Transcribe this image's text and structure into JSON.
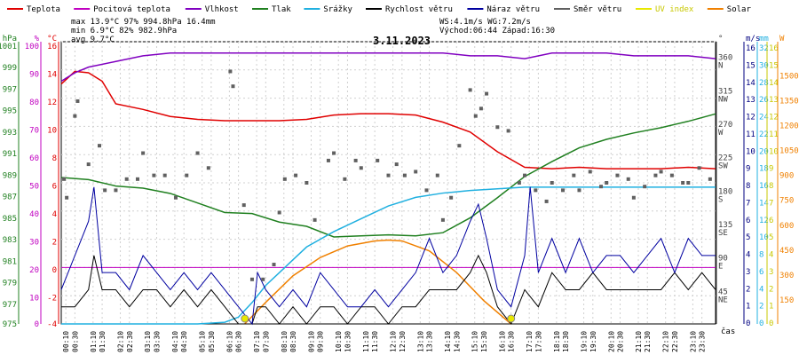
{
  "chart_data": {
    "type": "line",
    "title": "3.11.2023",
    "legend": [
      {
        "label": "Teplota",
        "color": "#e00000"
      },
      {
        "label": "Pocitová teplota",
        "color": "#c000c0"
      },
      {
        "label": "Vlhkost",
        "color": "#8000c0"
      },
      {
        "label": "Tlak",
        "color": "#208020"
      },
      {
        "label": "Srážky",
        "color": "#20b0e0"
      },
      {
        "label": "Rychlost větru",
        "color": "#000000"
      },
      {
        "label": "Náraz větru",
        "color": "#0000a0"
      },
      {
        "label": "Směr větru",
        "color": "#606060"
      },
      {
        "label": "UV index",
        "color": "#e8e800"
      },
      {
        "label": "Solar",
        "color": "#f08000"
      }
    ],
    "stats": {
      "max": "max  13.9°C  97%  994.8hPa   16.4mm",
      "min": "min   6.9°C  82%  982.9hPa",
      "avg": "avg   9.7°C",
      "wind": "WS:4.1m/s       WG:7.2m/s",
      "sun": "Východ:06:44   Západ:16:30"
    },
    "axis_headers": {
      "pressure": "hPa",
      "humidity": "%",
      "temperature": "°C",
      "direction": "°",
      "wind": "m/s",
      "rain": "mm",
      "solar": "W"
    },
    "axes": {
      "pressure": [
        "1001",
        "999",
        "997",
        "995",
        "993",
        "991",
        "989",
        "987",
        "985",
        "983",
        "981",
        "979",
        "977",
        "975"
      ],
      "humidity": [
        "100",
        "90",
        "80",
        "70",
        "60",
        "50",
        "40",
        "30",
        "20",
        "10",
        "0"
      ],
      "temperature": [
        "16",
        "14",
        "12",
        "10",
        "8",
        "6",
        "4",
        "2",
        "0",
        "-2",
        "-4"
      ],
      "direction": [
        "360\nN",
        "315\nNW",
        "270\nW",
        "225\nSW",
        "180\nS",
        "135\nSE",
        "90\nE",
        "45\nNE"
      ],
      "wind": [
        "16",
        "15",
        "14",
        "13",
        "12",
        "11",
        "10",
        "9",
        "8",
        "7",
        "6",
        "5",
        "4",
        "3",
        "2",
        "1",
        "0"
      ],
      "rain": [
        "32",
        "30",
        "28",
        "26",
        "24",
        "22",
        "20",
        "18",
        "16",
        "14",
        "12",
        "10",
        "8",
        "6",
        "4",
        "2",
        "0"
      ],
      "uv": [
        "16",
        "15",
        "14",
        "13",
        "12",
        "11",
        "10",
        "9",
        "8",
        "7",
        "6",
        "5",
        "4",
        "3",
        "2",
        "1",
        "0"
      ],
      "solar": [
        "1500",
        "1350",
        "1200",
        "1050",
        "900",
        "750",
        "600",
        "450",
        "300",
        "150"
      ]
    },
    "x_ticks": [
      "00:10",
      "00:30",
      "01:10",
      "01:30",
      "02:10",
      "02:30",
      "03:10",
      "03:30",
      "04:10",
      "04:30",
      "05:10",
      "05:30",
      "06:10",
      "06:30",
      "07:10",
      "07:30",
      "08:10",
      "08:30",
      "09:10",
      "09:30",
      "10:10",
      "10:30",
      "11:10",
      "11:30",
      "12:10",
      "12:30",
      "13:10",
      "13:30",
      "14:10",
      "14:30",
      "15:10",
      "15:30",
      "16:10",
      "16:30",
      "17:10",
      "17:30",
      "18:10",
      "18:30",
      "19:10",
      "19:30",
      "20:10",
      "20:30",
      "21:10",
      "21:30",
      "22:10",
      "22:30",
      "23:10",
      "23:30"
    ],
    "xlabel": "čas",
    "series": [
      {
        "name": "Teplota",
        "axis": "temperature",
        "x": [
          0,
          0.5,
          1,
          1.5,
          2,
          3,
          4,
          5,
          6,
          7,
          8,
          9,
          10,
          11,
          12,
          13,
          14,
          15,
          16,
          17,
          18,
          19,
          20,
          21,
          22,
          23,
          24
        ],
        "values": [
          13.0,
          13.9,
          13.8,
          13.2,
          11.6,
          11.2,
          10.7,
          10.5,
          10.4,
          10.4,
          10.4,
          10.5,
          10.8,
          10.9,
          10.9,
          10.8,
          10.3,
          9.6,
          8.2,
          7.1,
          7.0,
          7.1,
          7.0,
          7.0,
          7.0,
          7.1,
          7.0
        ]
      },
      {
        "name": "Vlhkost",
        "axis": "humidity",
        "x": [
          0,
          0.5,
          1,
          2,
          3,
          4,
          5,
          6,
          7,
          8,
          9,
          10,
          11,
          12,
          13,
          14,
          15,
          16,
          17,
          18,
          19,
          20,
          21,
          22,
          23,
          24
        ],
        "values": [
          86,
          89,
          91,
          93,
          95,
          96,
          96,
          96,
          96,
          96,
          96,
          96,
          96,
          96,
          96,
          96,
          95,
          95,
          94,
          96,
          96,
          96,
          95,
          95,
          95,
          94
        ]
      },
      {
        "name": "Tlak",
        "axis": "pressure",
        "x": [
          0,
          1,
          2,
          3,
          4,
          5,
          6,
          7,
          8,
          9,
          10,
          11,
          12,
          13,
          14,
          15,
          16,
          17,
          18,
          19,
          20,
          21,
          22,
          23,
          24
        ],
        "values": [
          988.8,
          988.6,
          988.0,
          987.8,
          987.3,
          986.4,
          985.5,
          985.4,
          984.6,
          984.2,
          983.2,
          983.3,
          983.4,
          983.3,
          983.6,
          985.0,
          986.9,
          988.9,
          990.3,
          991.6,
          992.4,
          993.0,
          993.5,
          994.1,
          994.8
        ]
      },
      {
        "name": "Srážky",
        "axis": "rain",
        "x": [
          0,
          1,
          2,
          3,
          4,
          5,
          6,
          6.5,
          7,
          7.5,
          8,
          8.5,
          9,
          10,
          11,
          12,
          13,
          14,
          15,
          16,
          17,
          18,
          19,
          20,
          21,
          22,
          23,
          24
        ],
        "values": [
          0,
          0,
          0,
          0,
          0,
          0,
          0.2,
          0.8,
          2.5,
          4.5,
          6.0,
          7.5,
          9.0,
          10.8,
          12.3,
          13.8,
          14.8,
          15.3,
          15.6,
          15.8,
          16.0,
          16.0,
          16.0,
          16.0,
          16.0,
          16.0,
          16.0,
          16.0
        ]
      },
      {
        "name": "Solar",
        "axis": "solar",
        "x": [
          6.73,
          7.5,
          8.5,
          9.5,
          10.5,
          11.5,
          12.0,
          12.5,
          13.5,
          14.5,
          15.5,
          16.5
        ],
        "values": [
          0,
          130,
          290,
          400,
          470,
          500,
          505,
          500,
          440,
          310,
          140,
          0
        ]
      },
      {
        "name": "Rychlost větru",
        "axis": "wind",
        "x": [
          0,
          0.5,
          1,
          1.2,
          1.5,
          2,
          2.5,
          3,
          3.5,
          4,
          4.5,
          5,
          5.5,
          6,
          6.5,
          7,
          7.2,
          7.5,
          8,
          8.5,
          9,
          9.5,
          10,
          10.5,
          11,
          11.5,
          12,
          12.5,
          13,
          13.5,
          14,
          14.5,
          15,
          15.3,
          15.6,
          16,
          16.5,
          17,
          17.5,
          18,
          18.5,
          19,
          19.5,
          20,
          20.5,
          21,
          21.5,
          22,
          22.5,
          23,
          23.5,
          24
        ],
        "values": [
          1,
          1,
          2,
          4,
          2,
          2,
          1,
          2,
          2,
          1,
          2,
          1,
          2,
          1,
          0,
          0,
          1,
          1,
          0,
          1,
          0,
          1,
          1,
          0,
          1,
          1,
          0,
          1,
          1,
          2,
          2,
          2,
          3,
          4,
          3,
          1,
          0,
          2,
          1,
          3,
          2,
          2,
          3,
          2,
          2,
          2,
          2,
          2,
          3,
          2,
          3,
          2
        ]
      },
      {
        "name": "Náraz větru",
        "axis": "wind",
        "x": [
          0,
          0.5,
          1,
          1.2,
          1.5,
          2,
          2.5,
          3,
          3.5,
          4,
          4.5,
          5,
          5.5,
          6,
          6.5,
          7,
          7.2,
          7.5,
          8,
          8.5,
          9,
          9.5,
          10,
          10.5,
          11,
          11.5,
          12,
          12.5,
          13,
          13.5,
          14,
          14.5,
          15,
          15.3,
          15.6,
          16,
          16.5,
          17,
          17.2,
          17.5,
          18,
          18.5,
          19,
          19.5,
          20,
          20.5,
          21,
          21.5,
          22,
          22.5,
          23,
          23.5,
          24
        ],
        "values": [
          2,
          4,
          6,
          8,
          3,
          3,
          2,
          4,
          3,
          2,
          3,
          2,
          3,
          2,
          1,
          0,
          3,
          2,
          1,
          2,
          1,
          3,
          2,
          1,
          1,
          2,
          1,
          2,
          3,
          5,
          3,
          4,
          6,
          7,
          5,
          2,
          1,
          4,
          8,
          3,
          5,
          3,
          5,
          3,
          4,
          4,
          3,
          4,
          5,
          3,
          5,
          4,
          4
        ]
      },
      {
        "name": "Směr větru",
        "axis": "direction",
        "type": "scatter",
        "x": [
          0.1,
          0.2,
          0.5,
          0.6,
          1,
          1.4,
          1.6,
          2,
          2.4,
          2.8,
          3,
          3.4,
          3.8,
          4.2,
          4.6,
          5,
          5.4,
          6.2,
          6.3,
          6.7,
          7,
          7.4,
          7.8,
          8,
          8.2,
          8.6,
          9,
          9.3,
          9.8,
          10,
          10.4,
          10.8,
          11,
          11.6,
          12,
          12.3,
          12.6,
          13,
          13.4,
          13.8,
          14,
          14.3,
          14.6,
          15,
          15.2,
          15.4,
          15.6,
          16,
          16.4,
          16.8,
          17,
          17.4,
          17.8,
          18,
          18.4,
          18.8,
          19,
          19.4,
          19.8,
          20,
          20.4,
          20.8,
          21,
          21.4,
          21.8,
          22,
          22.4,
          22.8,
          23,
          23.4,
          23.8
        ],
        "values": [
          195,
          170,
          280,
          300,
          215,
          240,
          180,
          180,
          195,
          195,
          230,
          200,
          200,
          170,
          200,
          230,
          210,
          340,
          320,
          160,
          60,
          60,
          80,
          150,
          195,
          200,
          190,
          140,
          220,
          230,
          195,
          220,
          210,
          220,
          200,
          215,
          200,
          205,
          180,
          200,
          140,
          170,
          240,
          315,
          280,
          290,
          310,
          265,
          260,
          190,
          200,
          180,
          165,
          190,
          180,
          200,
          180,
          205,
          185,
          190,
          200,
          195,
          170,
          185,
          200,
          205,
          200,
          190,
          190,
          210,
          195
        ]
      }
    ],
    "markers": [
      {
        "name": "Východ",
        "time": "06:44"
      },
      {
        "name": "Západ",
        "time": "16:30"
      }
    ]
  }
}
